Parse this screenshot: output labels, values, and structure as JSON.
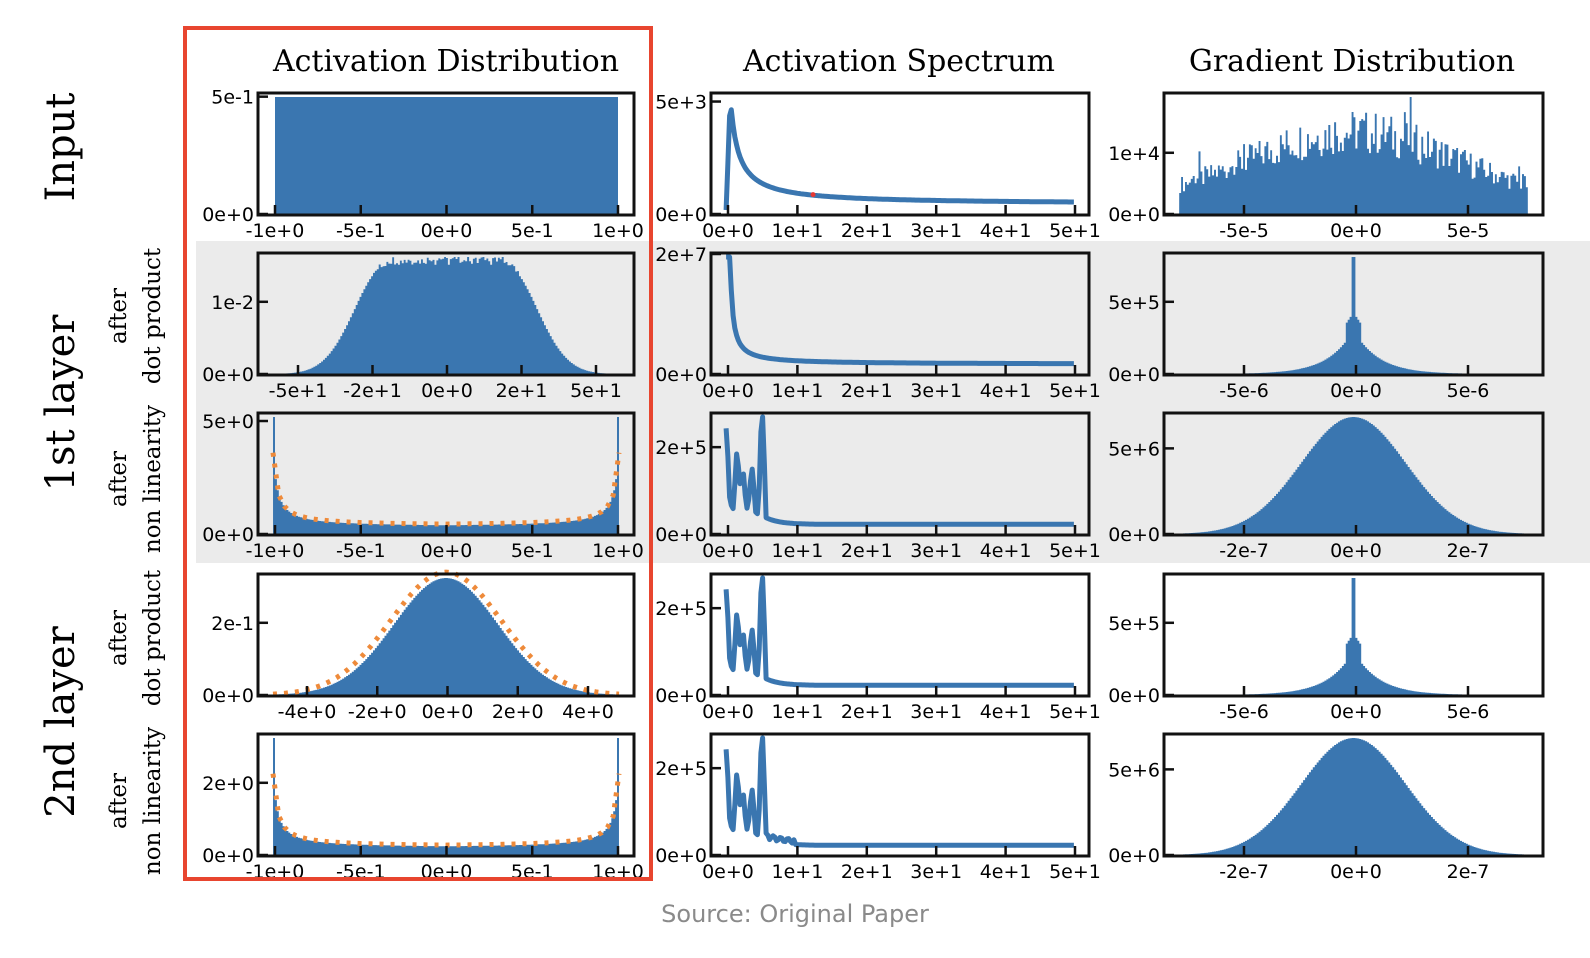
{
  "caption": "Source: Original Paper",
  "colors": {
    "bar": "#3a76b0",
    "line": "#3a76b0",
    "dotted": "#ee8a3a",
    "highlight_box": "#e8452f",
    "band": "#ebebeb",
    "marker": "#e53935"
  },
  "column_titles": [
    "Activation Distribution",
    "Activation Spectrum",
    "Gradient Distribution"
  ],
  "row_group_labels": [
    "Input",
    "1st layer",
    "2nd layer"
  ],
  "row_sub_labels": [
    {
      "line1": "after",
      "line2": "dot product"
    },
    {
      "line1": "after",
      "line2": "non linearity"
    },
    {
      "line1": "after",
      "line2": "dot product"
    },
    {
      "line1": "after",
      "line2": "non linearity"
    }
  ],
  "chart_data": [
    {
      "type": "bar",
      "group": "Input",
      "column": "Activation Distribution",
      "shape": "uniform",
      "xlim": [
        -1,
        1
      ],
      "xticks": [
        "-1e+0",
        "-5e-1",
        "0e+0",
        "5e-1",
        "1e+0"
      ],
      "yticks": [
        "0e+0",
        "5e-1"
      ],
      "ylim": [
        0,
        0.5
      ],
      "values_x": [
        -1,
        -0.5,
        0,
        0.5,
        1
      ],
      "values_y": [
        0.5,
        0.5,
        0.5,
        0.5,
        0.5
      ]
    },
    {
      "type": "line",
      "group": "Input",
      "column": "Activation Spectrum",
      "shape": "decay",
      "xlim": [
        0,
        50
      ],
      "xticks": [
        "0e+0",
        "1e+1",
        "2e+1",
        "3e+1",
        "4e+1",
        "5e+1"
      ],
      "yticks": [
        "0e+0",
        "5e+3"
      ],
      "ylim": [
        0,
        5000
      ],
      "peak_x": 0.5,
      "peak": 5000,
      "floor": 200,
      "marker": [
        12.5,
        680
      ]
    },
    {
      "type": "bar",
      "group": "Input",
      "column": "Gradient Distribution",
      "shape": "noisy-bell",
      "xlim": [
        -7.5e-05,
        7.5e-05
      ],
      "xticks": [
        "-5e-5",
        "0e+0",
        "5e-5"
      ],
      "yticks": [
        "0e+0",
        "1e+4"
      ],
      "ylim": [
        0,
        18000
      ],
      "peak": 16000
    },
    {
      "type": "bar",
      "group": "1st layer",
      "column": "Activation Distribution",
      "sub": "after dot product",
      "shape": "plateau",
      "xlim": [
        -65,
        65
      ],
      "xticks": [
        "-5e+1",
        "-2e+1",
        "0e+0",
        "2e+1",
        "5e+1"
      ],
      "yticks": [
        "0e+0",
        "1e-2"
      ],
      "ylim": [
        0,
        0.018
      ],
      "peak": 0.0155
    },
    {
      "type": "line",
      "group": "1st layer",
      "column": "Activation Spectrum",
      "sub": "after dot product",
      "shape": "decay",
      "xlim": [
        0,
        50
      ],
      "xticks": [
        "0e+0",
        "1e+1",
        "2e+1",
        "3e+1",
        "4e+1",
        "5e+1"
      ],
      "yticks": [
        "0e+0",
        "2e+7"
      ],
      "ylim": [
        0,
        20000000
      ],
      "peak": 20000000,
      "floor": 300000
    },
    {
      "type": "bar",
      "group": "1st layer",
      "column": "Gradient Distribution",
      "sub": "after dot product",
      "shape": "spike",
      "xlim": [
        -1.3e-05,
        1.3e-05
      ],
      "xticks": [
        "-5e-6",
        "0e+0",
        "5e-6"
      ],
      "yticks": [
        "0e+0",
        "5e+5"
      ],
      "ylim": [
        0,
        900000
      ],
      "peak": 900000
    },
    {
      "type": "bar",
      "group": "1st layer",
      "column": "Activation Distribution",
      "sub": "after non linearity",
      "shape": "u-shape",
      "xlim": [
        -1.1,
        1.1
      ],
      "xticks": [
        "-1e+0",
        "-5e-1",
        "0e+0",
        "5e-1",
        "1e+0"
      ],
      "yticks": [
        "0e+0",
        "5e+0"
      ],
      "ylim": [
        0,
        5
      ],
      "edge_peak": 5
    },
    {
      "type": "line",
      "group": "1st layer",
      "column": "Activation Spectrum",
      "sub": "after non linearity",
      "shape": "bumpy-decay",
      "xlim": [
        0,
        50
      ],
      "xticks": [
        "0e+0",
        "1e+1",
        "2e+1",
        "3e+1",
        "4e+1",
        "5e+1"
      ],
      "yticks": [
        "0e+0",
        "2e+5"
      ],
      "ylim": [
        0,
        320000
      ],
      "peak": 320000
    },
    {
      "type": "bar",
      "group": "1st layer",
      "column": "Gradient Distribution",
      "sub": "after non linearity",
      "shape": "bell",
      "xlim": [
        -3.6e-07,
        3.6e-07
      ],
      "xticks": [
        "-2e-7",
        "0e+0",
        "2e-7"
      ],
      "yticks": [
        "0e+0",
        "5e+6"
      ],
      "ylim": [
        0,
        7400000
      ],
      "peak": 6800000
    },
    {
      "type": "bar",
      "group": "2nd layer",
      "column": "Activation Distribution",
      "sub": "after dot product",
      "shape": "bell",
      "xlim": [
        -5.5,
        5.5
      ],
      "xticks": [
        "-4e+0",
        "-2e+0",
        "0e+0",
        "2e+0",
        "4e+0"
      ],
      "yticks": [
        "0e+0",
        "2e-1"
      ],
      "ylim": [
        0,
        0.33
      ],
      "peak": 0.3
    },
    {
      "type": "line",
      "group": "2nd layer",
      "column": "Activation Spectrum",
      "sub": "after dot product",
      "shape": "bumpy-decay",
      "xlim": [
        0,
        50
      ],
      "xticks": [
        "0e+0",
        "1e+1",
        "2e+1",
        "3e+1",
        "4e+1",
        "5e+1"
      ],
      "yticks": [
        "0e+0",
        "2e+5"
      ],
      "ylim": [
        0,
        320000
      ],
      "peak": 320000
    },
    {
      "type": "bar",
      "group": "2nd layer",
      "column": "Gradient Distribution",
      "sub": "after dot product",
      "shape": "spike",
      "xlim": [
        -1.3e-05,
        1.3e-05
      ],
      "xticks": [
        "-5e-6",
        "0e+0",
        "5e-6"
      ],
      "yticks": [
        "0e+0",
        "5e+5"
      ],
      "ylim": [
        0,
        900000
      ],
      "peak": 900000
    },
    {
      "type": "bar",
      "group": "2nd layer",
      "column": "Activation Distribution",
      "sub": "after non linearity",
      "shape": "u-shape",
      "xlim": [
        -1.1,
        1.1
      ],
      "xticks": [
        "-1e+0",
        "-5e-1",
        "0e+0",
        "5e-1",
        "1e+0"
      ],
      "yticks": [
        "0e+0",
        "2e+0"
      ],
      "ylim": [
        0,
        3.3
      ],
      "edge_peak": 3
    },
    {
      "type": "line",
      "group": "2nd layer",
      "column": "Activation Spectrum",
      "sub": "after non linearity",
      "shape": "bumpy-decay",
      "xlim": [
        0,
        50
      ],
      "xticks": [
        "0e+0",
        "1e+1",
        "2e+1",
        "3e+1",
        "4e+1",
        "5e+1"
      ],
      "yticks": [
        "0e+0",
        "2e+5"
      ],
      "ylim": [
        0,
        270000
      ],
      "peak": 270000
    },
    {
      "type": "bar",
      "group": "2nd layer",
      "column": "Gradient Distribution",
      "sub": "after non linearity",
      "shape": "bell",
      "xlim": [
        -3.6e-07,
        3.6e-07
      ],
      "xticks": [
        "-2e-7",
        "0e+0",
        "2e-7"
      ],
      "yticks": [
        "0e+0",
        "5e+6"
      ],
      "ylim": [
        0,
        7400000
      ],
      "peak": 6900000
    }
  ]
}
